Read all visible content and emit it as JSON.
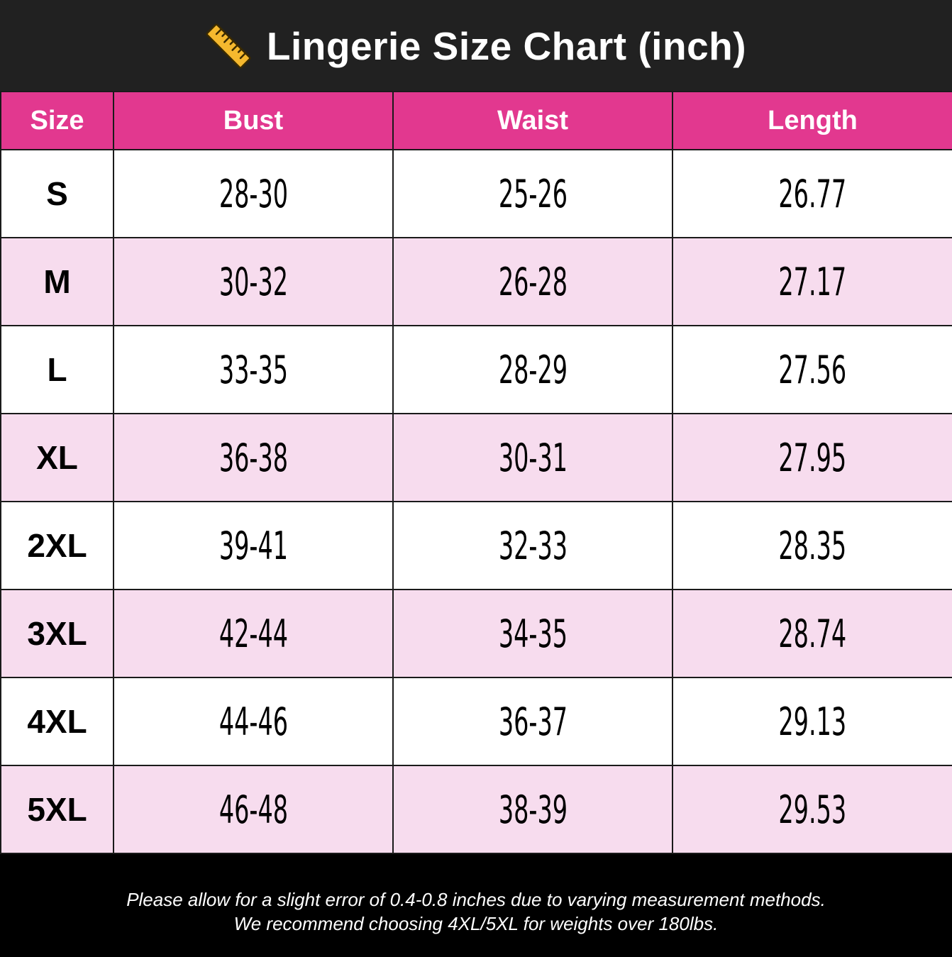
{
  "title": "Lingerie Size Chart (inch)",
  "title_icon": "ruler-icon",
  "colors": {
    "title_bg": "#212121",
    "header_bg": "#e2388f",
    "row_alt_bg": "#f7dcee",
    "row_bg": "#ffffff",
    "footer_bg": "#000000"
  },
  "chart_data": {
    "type": "table",
    "title": "Lingerie Size Chart (inch)",
    "columns": [
      "Size",
      "Bust",
      "Waist",
      "Length"
    ],
    "rows": [
      [
        "S",
        "28-30",
        "25-26",
        "26.77"
      ],
      [
        "M",
        "30-32",
        "26-28",
        "27.17"
      ],
      [
        "L",
        "33-35",
        "28-29",
        "27.56"
      ],
      [
        "XL",
        "36-38",
        "30-31",
        "27.95"
      ],
      [
        "2XL",
        "39-41",
        "32-33",
        "28.35"
      ],
      [
        "3XL",
        "42-44",
        "34-35",
        "28.74"
      ],
      [
        "4XL",
        "44-46",
        "36-37",
        "29.13"
      ],
      [
        "5XL",
        "46-48",
        "38-39",
        "29.53"
      ]
    ]
  },
  "footer": {
    "line1": "Please allow for a slight error of 0.4-0.8 inches due to varying measurement methods.",
    "line2": "We recommend choosing 4XL/5XL for weights over 180lbs."
  }
}
